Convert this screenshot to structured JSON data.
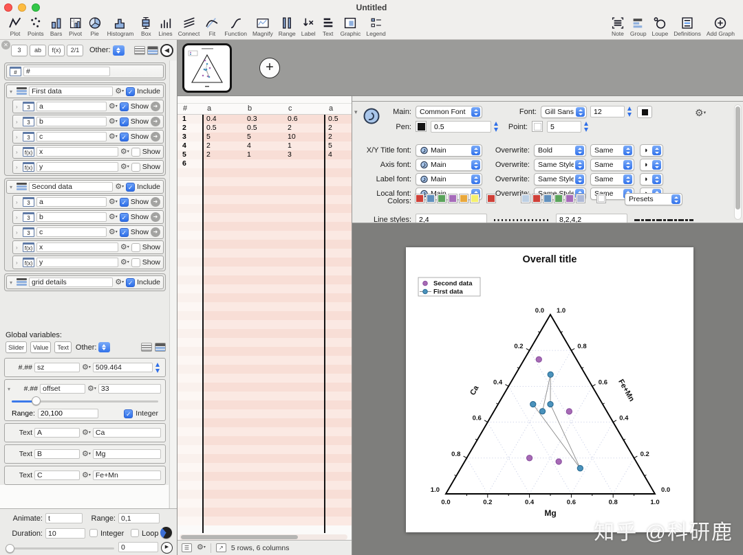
{
  "window": {
    "title": "Untitled"
  },
  "toolbar": {
    "left": [
      {
        "label": "Plot",
        "icon": "plot-icon"
      },
      {
        "label": "Points",
        "icon": "points-icon"
      },
      {
        "label": "Bars",
        "icon": "bars-icon"
      },
      {
        "label": "Pivot",
        "icon": "pivot-icon"
      },
      {
        "label": "Pie",
        "icon": "pie-icon"
      },
      {
        "label": "Histogram",
        "icon": "histogram-icon"
      },
      {
        "label": "Box",
        "icon": "box-icon"
      },
      {
        "label": "Lines",
        "icon": "lines-icon"
      },
      {
        "label": "Connect",
        "icon": "connect-icon"
      },
      {
        "label": "Fit",
        "icon": "fit-icon"
      },
      {
        "label": "Function",
        "icon": "function-icon"
      },
      {
        "label": "Magnify",
        "icon": "magnify-icon"
      },
      {
        "label": "Range",
        "icon": "range-icon"
      },
      {
        "label": "Label",
        "icon": "label-icon"
      },
      {
        "label": "Text",
        "icon": "text-icon"
      },
      {
        "label": "Graphic",
        "icon": "graphic-icon"
      },
      {
        "label": "Legend",
        "icon": "legend-icon"
      }
    ],
    "right": [
      {
        "label": "Note",
        "icon": "note-icon"
      },
      {
        "label": "Group",
        "icon": "group-icon"
      },
      {
        "label": "Loupe",
        "icon": "loupe-icon"
      },
      {
        "label": "Definitions",
        "icon": "definitions-icon"
      },
      {
        "label": "Add Graph",
        "icon": "add-graph-icon"
      }
    ]
  },
  "sidebar": {
    "toolbar": {
      "buttons": [
        "3",
        "ab",
        "f(x)",
        "2/1"
      ],
      "other_label": "Other:"
    },
    "rows": [
      {
        "type": "hash",
        "name": "#"
      },
      {
        "type": "group",
        "name": "First data",
        "check_label": "Include",
        "checked": true
      },
      {
        "type": "col",
        "icon": "3",
        "name": "a",
        "check_label": "Show",
        "checked": true,
        "link": true
      },
      {
        "type": "col",
        "icon": "3",
        "name": "b",
        "check_label": "Show",
        "checked": true,
        "link": true
      },
      {
        "type": "col",
        "icon": "3",
        "name": "c",
        "check_label": "Show",
        "checked": true,
        "link": true
      },
      {
        "type": "col",
        "icon": "f(x)",
        "name": "x",
        "check_label": "Show",
        "checked": false
      },
      {
        "type": "col",
        "icon": "f(x)",
        "name": "y",
        "check_label": "Show",
        "checked": false
      },
      {
        "type": "group",
        "name": "Second data",
        "check_label": "Include",
        "checked": true
      },
      {
        "type": "col",
        "icon": "3",
        "name": "a",
        "check_label": "Show",
        "checked": true,
        "link": true
      },
      {
        "type": "col",
        "icon": "3",
        "name": "b",
        "check_label": "Show",
        "checked": true,
        "link": true
      },
      {
        "type": "col",
        "icon": "3",
        "name": "c",
        "check_label": "Show",
        "checked": true,
        "link": true
      },
      {
        "type": "col",
        "icon": "f(x)",
        "name": "x",
        "check_label": "Show",
        "checked": false
      },
      {
        "type": "col",
        "icon": "f(x)",
        "name": "y",
        "check_label": "Show",
        "checked": false
      },
      {
        "type": "group",
        "name": "grid details",
        "check_label": "Include",
        "checked": true
      }
    ],
    "globals": {
      "label": "Global variables:",
      "buttons": [
        "Slider",
        "Value",
        "Text"
      ],
      "other_label": "Other:",
      "vars": [
        {
          "kind": "#.##",
          "name": "sz",
          "value": "509.464",
          "stepper": true
        },
        {
          "kind": "#.##",
          "name": "offset",
          "value": "33",
          "expanded": {
            "range_label": "Range:",
            "range_value": "20,100",
            "integer_label": "Integer",
            "integer_checked": true
          }
        },
        {
          "kind": "Text",
          "name": "A",
          "value": "Ca"
        },
        {
          "kind": "Text",
          "name": "B",
          "value": "Mg"
        },
        {
          "kind": "Text",
          "name": "C",
          "value": "Fe+Mn"
        }
      ]
    },
    "animate": {
      "animate_label": "Animate:",
      "animate_value": "t",
      "range_label": "Range:",
      "range_value": "0,1",
      "duration_label": "Duration:",
      "duration_value": "10",
      "integer_label": "Integer",
      "loop_label": "Loop",
      "slider_value": "0"
    }
  },
  "table": {
    "columns": [
      "#",
      "a",
      "b",
      "c",
      "a"
    ],
    "rows": [
      [
        "1",
        "0.4",
        "0.3",
        "0.6",
        "0.5"
      ],
      [
        "2",
        "0.5",
        "0.5",
        "2",
        "2"
      ],
      [
        "3",
        "5",
        "5",
        "10",
        "2"
      ],
      [
        "4",
        "2",
        "4",
        "1",
        "5"
      ],
      [
        "5",
        "2",
        "1",
        "3",
        "4"
      ],
      [
        "6",
        "",
        "",
        "",
        ""
      ]
    ],
    "status": "5 rows, 6 columns"
  },
  "inspector": {
    "main_label": "Main:",
    "main_value": "Common Font",
    "font_label": "Font:",
    "font_value": "Gill Sans",
    "font_size": "12",
    "pen_label": "Pen:",
    "pen_value": "0.5",
    "point_label": "Point:",
    "point_value": "5",
    "font_rows": [
      {
        "label": "X/Y Title font:",
        "value": "Main",
        "ow_label": "Overwrite:",
        "ow_value": "Bold",
        "same_value": "Same"
      },
      {
        "label": "Axis font:",
        "value": "Main",
        "ow_label": "Overwrite:",
        "ow_value": "Same Style",
        "same_value": "Same"
      },
      {
        "label": "Label font:",
        "value": "Main",
        "ow_label": "Overwrite:",
        "ow_value": "Same Style",
        "same_value": "Same"
      },
      {
        "label": "Local font:",
        "value": "Main",
        "ow_label": "Overwrite:",
        "ow_value": "Same Style",
        "same_value": "Same"
      }
    ],
    "colors_label": "Colors:",
    "palette1": [
      "#cf4038",
      "#6190bd",
      "#5ba45b",
      "#a66bba",
      "#e9a83c",
      "#f5f06e"
    ],
    "single_color": "#cf4038",
    "palette2": [
      "#bdd0e4",
      "#cf4038",
      "#6190bd",
      "#5ba45b",
      "#a66bba",
      "#aeb9d6"
    ],
    "white_color": "#ffffff",
    "presets_label": "Presets",
    "line_styles_label": "Line styles:",
    "line_style1": "2,4",
    "line_style2": "8,2,4,2"
  },
  "chart_data": {
    "type": "scatter",
    "subtype": "ternary",
    "title": "Overall title",
    "axis_titles": {
      "left": "Ca",
      "right": "Fe+Mn",
      "bottom": "Mg"
    },
    "tick_values": [
      0,
      0.2,
      0.4,
      0.6,
      0.8,
      1
    ],
    "tick_labels": [
      "0.0",
      "0.2",
      "0.4",
      "0.6",
      "0.8",
      "1.0"
    ],
    "grid_values": [
      0.2,
      0.4,
      0.6,
      0.8
    ],
    "grid": true,
    "legend_position": "top-left",
    "series": [
      {
        "name": "Second data",
        "color": "#a76ab5",
        "edge": "#8a50a0",
        "connected": false,
        "points": [
          [
            0.18,
            0.07,
            0.75
          ],
          [
            0.18,
            0.36,
            0.46
          ],
          [
            0.5,
            0.3,
            0.2
          ],
          [
            0.37,
            0.45,
            0.18
          ]
        ]
      },
      {
        "name": "First data",
        "color": "#4a92bc",
        "edge": "#2a6b93",
        "connected": true,
        "line_color": "#8a8a8a",
        "points": [
          [
            0.308,
            0.231,
            0.462
          ],
          [
            0.167,
            0.167,
            0.667
          ],
          [
            0.25,
            0.25,
            0.5
          ],
          [
            0.286,
            0.571,
            0.143
          ],
          [
            0.333,
            0.167,
            0.5
          ]
        ]
      }
    ]
  },
  "watermark": "知乎 @科研鹿"
}
